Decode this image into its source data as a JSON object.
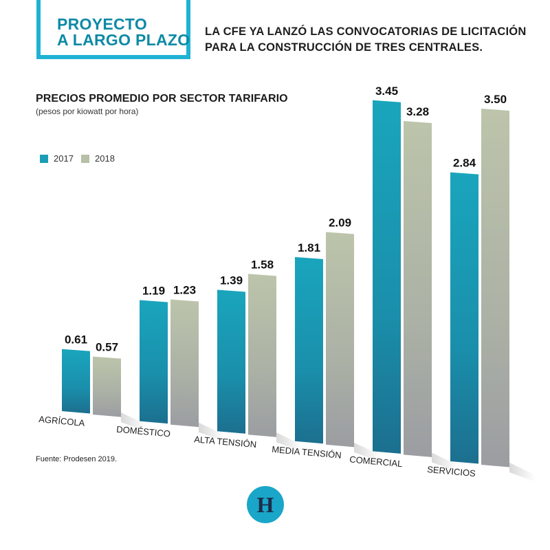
{
  "header": {
    "title_line1": "PROYECTO",
    "title_line2": "A LARGO PLAZO",
    "subtitle_line1": "LA CFE YA LANZÓ LAS CONVOCATORIAS DE LICITACIÓN",
    "subtitle_line2": "PARA LA CONSTRUCCIÓN DE TRES CENTRALES."
  },
  "source": "Fuente: Prodesen 2019.",
  "logo_letter": "H",
  "colors": {
    "series_2017": "#1a9db5",
    "series_2018": "#b7bfa8",
    "title_border": "#1fb2d4",
    "logo": "#1aa6c8"
  },
  "chart_data": {
    "type": "bar",
    "title": "PRECIOS PROMEDIO POR SECTOR TARIFARIO",
    "subtitle": "(pesos por kiowatt por hora)",
    "categories": [
      "AGRÍCOLA",
      "DOMÉSTICO",
      "ALTA TENSIÓN",
      "MEDIA TENSIÓN",
      "COMERCIAL",
      "SERVICIOS"
    ],
    "series": [
      {
        "name": "2017",
        "values": [
          0.61,
          1.19,
          1.39,
          1.81,
          3.45,
          2.84
        ],
        "labels": [
          "0.61",
          "1.19",
          "1.39",
          "1.81",
          "3.45",
          "2.84"
        ]
      },
      {
        "name": "2018",
        "values": [
          0.57,
          1.23,
          1.58,
          2.09,
          3.28,
          3.5
        ],
        "labels": [
          "0.57",
          "1.23",
          "1.58",
          "2.09",
          "3.28",
          "3.50"
        ]
      }
    ],
    "legend_position": "top-left",
    "grid": false
  }
}
